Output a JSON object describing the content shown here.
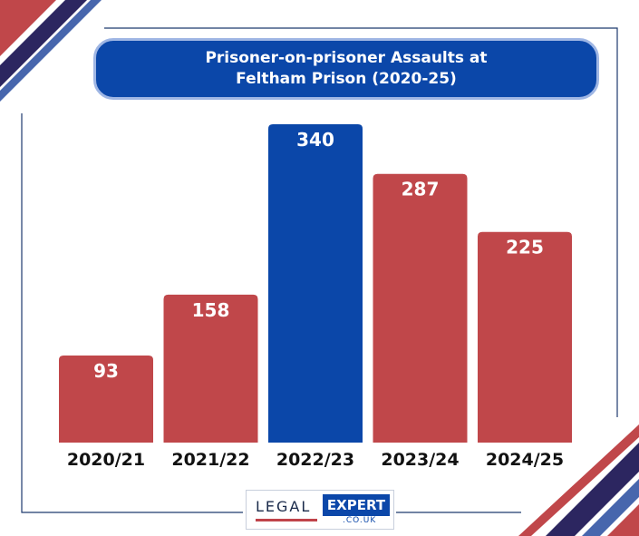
{
  "chart_data": {
    "type": "bar",
    "title_lines": [
      "Prisoner-on-prisoner Assaults at",
      "Feltham Prison (2020-25)"
    ],
    "categories": [
      "2020/21",
      "2021/22",
      "2022/23",
      "2023/24",
      "2024/25"
    ],
    "values": [
      93,
      158,
      340,
      287,
      225
    ],
    "highlight_index": 2,
    "ylim": [
      0,
      340
    ],
    "grid": false,
    "legend": "none",
    "colors": {
      "default": "#c0474a",
      "highlight": "#0b47a9",
      "title_bg": "#0b47a9",
      "stripe_dark": "#2c2660",
      "stripe_light": "#4766ad"
    }
  },
  "logo": {
    "legal": "LEGAL",
    "expert": "EXPERT",
    "domain": ".CO.UK"
  }
}
